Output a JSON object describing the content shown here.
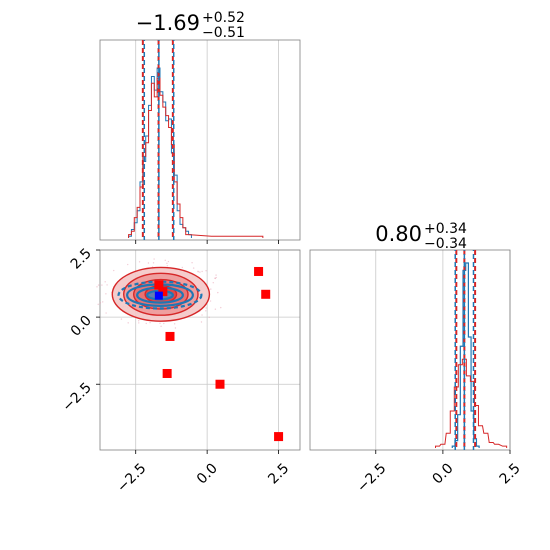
{
  "chart_data": {
    "type": "corner",
    "colors": {
      "blue": "#1f77b4",
      "red": "#d62728",
      "marker_red": "#ff0000",
      "marker_blue": "#0000ff",
      "grid": "#c8c8c8",
      "axis": "#7f7f7f"
    },
    "titles": [
      {
        "main": "−1.69",
        "sup": "+0.52",
        "sub": "−0.51"
      },
      {
        "main": "0.80",
        "sup": "+0.34",
        "sub": "−0.34"
      }
    ],
    "x_ticks": [
      "−2.5",
      "0.0",
      "2.5"
    ],
    "x_tick_values": [
      -2.5,
      0.0,
      2.5
    ],
    "y_ticks": [
      "2.5",
      "0.0",
      "−2.5"
    ],
    "y_tick_values": [
      2.5,
      0.0,
      -2.5
    ],
    "param1": {
      "xlim": [
        -3.75,
        3.25
      ],
      "quantiles_blue": [
        -2.2,
        -1.69,
        -1.17
      ],
      "quantiles_red": [
        -2.25,
        -1.7,
        -1.2
      ],
      "hist_blue": [
        [
          -2.7,
          0.01
        ],
        [
          -2.6,
          0.05
        ],
        [
          -2.5,
          0.09
        ],
        [
          -2.4,
          0.16
        ],
        [
          -2.3,
          0.33
        ],
        [
          -2.2,
          0.45
        ],
        [
          -2.1,
          0.6
        ],
        [
          -2.0,
          0.78
        ],
        [
          -1.9,
          0.95
        ],
        [
          -1.8,
          0.87
        ],
        [
          -1.7,
          1.0
        ],
        [
          -1.6,
          0.86
        ],
        [
          -1.5,
          0.8
        ],
        [
          -1.4,
          0.69
        ],
        [
          -1.3,
          0.7
        ],
        [
          -1.2,
          0.5
        ],
        [
          -1.1,
          0.37
        ],
        [
          -1.0,
          0.16
        ],
        [
          -0.9,
          0.08
        ],
        [
          -0.8,
          0.06
        ],
        [
          -0.7,
          0.04
        ],
        [
          -0.6,
          0.02
        ]
      ],
      "hist_red": [
        [
          -2.7,
          0.02
        ],
        [
          -2.6,
          0.04
        ],
        [
          -2.5,
          0.12
        ],
        [
          -2.4,
          0.18
        ],
        [
          -2.3,
          0.3
        ],
        [
          -2.2,
          0.48
        ],
        [
          -2.1,
          0.56
        ],
        [
          -2.0,
          0.75
        ],
        [
          -1.9,
          0.91
        ],
        [
          -1.8,
          0.83
        ],
        [
          -1.7,
          0.94
        ],
        [
          -1.6,
          0.84
        ],
        [
          -1.5,
          0.77
        ],
        [
          -1.4,
          0.72
        ],
        [
          -1.3,
          0.65
        ],
        [
          -1.2,
          0.55
        ],
        [
          -1.1,
          0.33
        ],
        [
          -1.0,
          0.2
        ],
        [
          -0.9,
          0.12
        ],
        [
          -0.8,
          0.06
        ],
        [
          -0.7,
          0.02
        ],
        [
          0.2,
          0.01
        ],
        [
          0.6,
          0.01
        ],
        [
          1.9,
          0.01
        ]
      ]
    },
    "param2": {
      "xlim": [
        -4.95,
        2.5
      ],
      "quantiles_blue": [
        0.46,
        0.8,
        1.14
      ],
      "quantiles_red": [
        0.5,
        0.8,
        1.2
      ],
      "hist_blue": [
        [
          0.4,
          0.01
        ],
        [
          0.5,
          0.04
        ],
        [
          0.6,
          0.18
        ],
        [
          0.7,
          0.55
        ],
        [
          0.8,
          0.96
        ],
        [
          0.9,
          1.0
        ],
        [
          1.0,
          0.6
        ],
        [
          1.1,
          0.2
        ],
        [
          1.2,
          0.05
        ],
        [
          1.3,
          0.01
        ]
      ],
      "hist_red": [
        [
          -0.2,
          0.01
        ],
        [
          0.0,
          0.02
        ],
        [
          0.2,
          0.08
        ],
        [
          0.35,
          0.2
        ],
        [
          0.5,
          0.33
        ],
        [
          0.65,
          0.45
        ],
        [
          0.8,
          0.48
        ],
        [
          0.95,
          0.39
        ],
        [
          1.1,
          0.36
        ],
        [
          1.25,
          0.23
        ],
        [
          1.4,
          0.12
        ],
        [
          1.6,
          0.08
        ],
        [
          1.8,
          0.03
        ],
        [
          2.0,
          0.02
        ],
        [
          2.3,
          0.01
        ]
      ]
    },
    "joint": {
      "xlim": [
        -3.75,
        3.25
      ],
      "ylim": [
        -4.95,
        2.5
      ],
      "contours_red": [
        {
          "cx": -1.62,
          "cy": 0.85,
          "rx": 1.7,
          "ry": 1.0
        },
        {
          "cx": -1.62,
          "cy": 0.85,
          "rx": 1.3,
          "ry": 0.78
        },
        {
          "cx": -1.62,
          "cy": 0.85,
          "rx": 0.95,
          "ry": 0.55
        },
        {
          "cx": -1.62,
          "cy": 0.85,
          "rx": 0.55,
          "ry": 0.32
        }
      ],
      "contours_blue": [
        {
          "cx": -1.65,
          "cy": 0.82,
          "rx": 1.45,
          "ry": 0.5
        },
        {
          "cx": -1.65,
          "cy": 0.82,
          "rx": 1.15,
          "ry": 0.4
        },
        {
          "cx": -1.65,
          "cy": 0.82,
          "rx": 0.8,
          "ry": 0.28
        },
        {
          "cx": -1.65,
          "cy": 0.82,
          "rx": 0.45,
          "ry": 0.16
        }
      ],
      "markers_red": [
        [
          -1.69,
          1.2
        ],
        [
          -1.55,
          0.95
        ],
        [
          -1.3,
          -0.72
        ],
        [
          -1.4,
          -2.1
        ],
        [
          0.45,
          -2.5
        ],
        [
          1.8,
          1.7
        ],
        [
          2.05,
          0.85
        ],
        [
          2.5,
          -4.45
        ]
      ],
      "marker_blue": [
        -1.69,
        0.8
      ]
    }
  }
}
